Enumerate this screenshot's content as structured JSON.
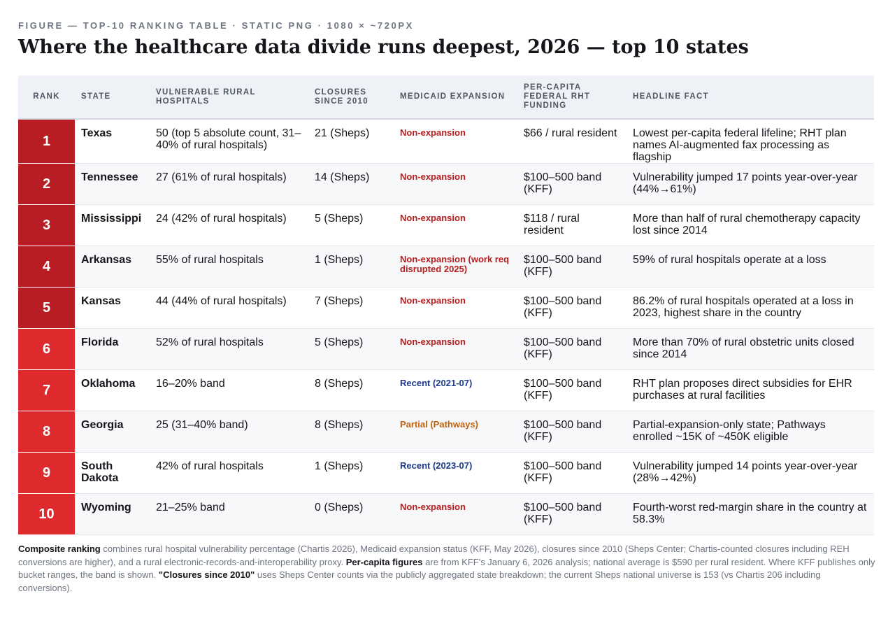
{
  "kicker": "FIGURE — TOP-10 RANKING TABLE · STATIC PNG · 1080 × ~720PX",
  "title": "Where the healthcare data divide runs deepest, 2026 — top 10 states",
  "headers": {
    "rank": "Rank",
    "state": "State",
    "vulnerable": "Vulnerable rural hospitals",
    "closures": "Closures since 2010",
    "medicaid": "Medicaid expansion",
    "funding": "Per-capita federal RHT funding",
    "fact": "Headline fact"
  },
  "colors": {
    "rank_dark": "#b71d22",
    "rank_light": "#df2a2d",
    "medicaid_non_expansion": "#b91c1c",
    "medicaid_recent": "#1e3a8a",
    "medicaid_partial": "#c2620a"
  },
  "rows": [
    {
      "rank": "1",
      "state": "Texas",
      "vulnerable": "50 (top 5 absolute count, 31–40% of rural hospitals)",
      "closures": "21 (Sheps)",
      "medicaid": "Non-expansion",
      "medicaid_status": "non",
      "funding": "$66 / rural resident",
      "fact": "Lowest per-capita federal lifeline; RHT plan names AI-augmented fax processing as flagship"
    },
    {
      "rank": "2",
      "state": "Tennessee",
      "vulnerable": "27 (61% of rural hospitals)",
      "closures": "14 (Sheps)",
      "medicaid": "Non-expansion",
      "medicaid_status": "non",
      "funding": "$100–500 band (KFF)",
      "fact": "Vulnerability jumped 17 points year-over-year (44%→61%)"
    },
    {
      "rank": "3",
      "state": "Mississippi",
      "vulnerable": "24 (42% of rural hospitals)",
      "closures": "5 (Sheps)",
      "medicaid": "Non-expansion",
      "medicaid_status": "non",
      "funding": "$118 / rural resident",
      "fact": "More than half of rural chemotherapy capacity lost since 2014"
    },
    {
      "rank": "4",
      "state": "Arkansas",
      "vulnerable": "55% of rural hospitals",
      "closures": "1 (Sheps)",
      "medicaid": "Non-expansion (work req disrupted 2025)",
      "medicaid_status": "non",
      "funding": "$100–500 band (KFF)",
      "fact": "59% of rural hospitals operate at a loss"
    },
    {
      "rank": "5",
      "state": "Kansas",
      "vulnerable": "44 (44% of rural hospitals)",
      "closures": "7 (Sheps)",
      "medicaid": "Non-expansion",
      "medicaid_status": "non",
      "funding": "$100–500 band (KFF)",
      "fact": "86.2% of rural hospitals operated at a loss in 2023, highest share in the country"
    },
    {
      "rank": "6",
      "state": "Florida",
      "vulnerable": "52% of rural hospitals",
      "closures": "5 (Sheps)",
      "medicaid": "Non-expansion",
      "medicaid_status": "non",
      "funding": "$100–500 band (KFF)",
      "fact": "More than 70% of rural obstetric units closed since 2014"
    },
    {
      "rank": "7",
      "state": "Oklahoma",
      "vulnerable": "16–20% band",
      "closures": "8 (Sheps)",
      "medicaid": "Recent (2021-07)",
      "medicaid_status": "recent",
      "funding": "$100–500 band (KFF)",
      "fact": "RHT plan proposes direct subsidies for EHR purchases at rural facilities"
    },
    {
      "rank": "8",
      "state": "Georgia",
      "vulnerable": "25 (31–40% band)",
      "closures": "8 (Sheps)",
      "medicaid": "Partial (Pathways)",
      "medicaid_status": "partial",
      "funding": "$100–500 band (KFF)",
      "fact": "Partial-expansion-only state; Pathways enrolled ~15K of ~450K eligible"
    },
    {
      "rank": "9",
      "state": "South Dakota",
      "vulnerable": "42% of rural hospitals",
      "closures": "1 (Sheps)",
      "medicaid": "Recent (2023-07)",
      "medicaid_status": "recent",
      "funding": "$100–500 band (KFF)",
      "fact": "Vulnerability jumped 14 points year-over-year (28%→42%)"
    },
    {
      "rank": "10",
      "state": "Wyoming",
      "vulnerable": "21–25% band",
      "closures": "0 (Sheps)",
      "medicaid": "Non-expansion",
      "medicaid_status": "non",
      "funding": "$100–500 band (KFF)",
      "fact": "Fourth-worst red-margin share in the country at 58.3%"
    }
  ],
  "footnote": {
    "p1_bold": "Composite ranking",
    "p1_text": " combines rural hospital vulnerability percentage (Chartis 2026), Medicaid expansion status (KFF, May 2026), closures since 2010 (Sheps Center; Chartis-counted closures including REH conversions are higher), and a rural electronic-records-and-interoperability proxy. ",
    "p2_bold": "Per-capita figures",
    "p2_text": " are from KFF's January 6, 2026 analysis; national average is $590 per rural resident. Where KFF publishes only bucket ranges, the band is shown. ",
    "p3_bold": "\"Closures since 2010\"",
    "p3_text": " uses Sheps Center counts via the publicly aggregated state breakdown; the current Sheps national universe is 153 (vs Chartis 206 including conversions)."
  }
}
